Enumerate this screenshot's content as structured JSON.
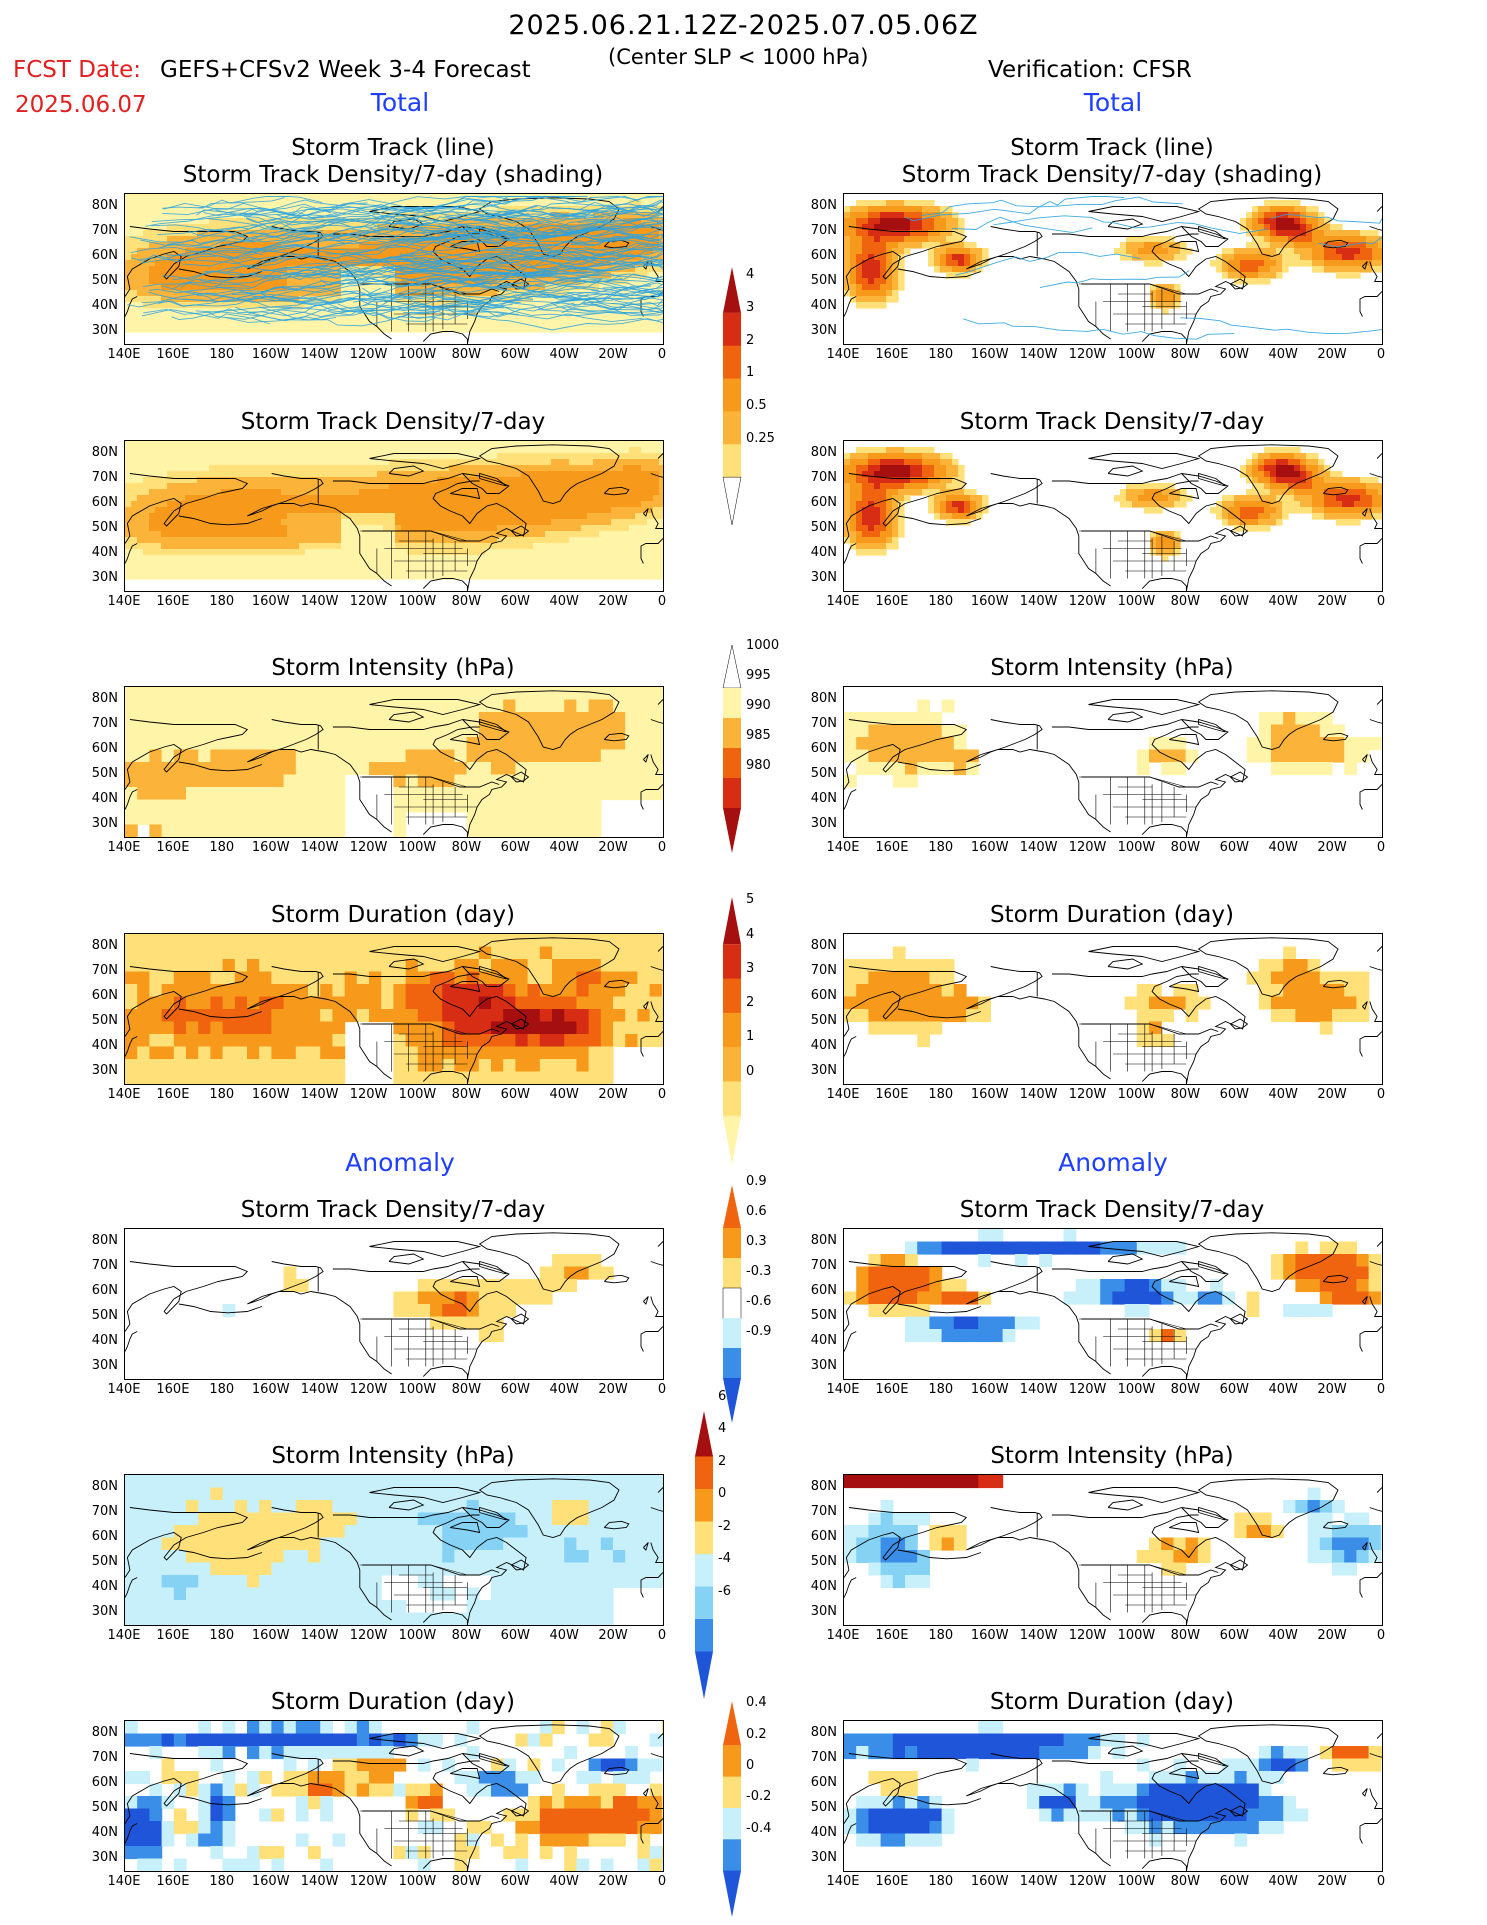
{
  "header": {
    "title": "2025.06.21.12Z-2025.07.05.06Z",
    "subtitle": "(Center SLP < 1000 hPa)",
    "fcst_label": "FCST Date:",
    "fcst_date": "2025.06.07",
    "model_label": "GEFS+CFSv2 Week 3-4 Forecast",
    "verification_label": "Verification: CFSR"
  },
  "sections": {
    "total": "Total",
    "anomaly": "Anomaly"
  },
  "panel_titles": {
    "track_line": "Storm Track (line)",
    "track_shading": "Storm Track Density/7-day (shading)",
    "density": "Storm Track Density/7-day",
    "intensity": "Storm Intensity (hPa)",
    "duration": "Storm Duration (day)"
  },
  "axes": {
    "lat_ticks": [
      "80N",
      "70N",
      "60N",
      "50N",
      "40N",
      "30N"
    ],
    "lon_ticks": [
      "140E",
      "160E",
      "180",
      "160W",
      "140W",
      "120W",
      "100W",
      "80W",
      "60W",
      "40W",
      "20W",
      "0"
    ]
  },
  "colorbars": {
    "density_total": [
      "4",
      "3",
      "2",
      "1",
      "0.5",
      "0.25"
    ],
    "intensity_total": [
      "1000",
      "995",
      "990",
      "985",
      "980"
    ],
    "duration_total": [
      "5",
      "4",
      "3",
      "2",
      "1",
      "0"
    ],
    "density_anom": [
      "0.9",
      "0.6",
      "0.3",
      "-0.3",
      "-0.6",
      "-0.9"
    ],
    "intensity_anom": [
      "6",
      "4",
      "2",
      "0",
      "-2",
      "-4",
      "-6"
    ],
    "duration_anom": [
      "0.4",
      "0.2",
      "0",
      "-0.2",
      "-0.4"
    ]
  },
  "colors": {
    "seq_light": "#fff4a8",
    "seq_1": "#ffe079",
    "seq_2": "#fbb33a",
    "seq_3": "#f79a1c",
    "seq_4": "#f06410",
    "seq_5": "#d62d14",
    "seq_6": "#a50f0f",
    "div_neg_1": "#c7f0fa",
    "div_neg_2": "#86d2f5",
    "div_neg_3": "#3a8ee8",
    "div_neg_4": "#1f55d8",
    "track_line": "#2aa3e0",
    "label_red": "#e02020",
    "label_blue": "#1f3fff"
  },
  "chart_data": [
    {
      "type": "heatmap",
      "panel": "forecast-total-storm-track-with-density",
      "columns": "GEFS+CFSv2 Week 3-4 Forecast",
      "title": "Storm Track (line) / Storm Track Density/7-day (shading)",
      "xlim": [
        "140E",
        "0"
      ],
      "ylim": [
        "25N",
        "85N"
      ]
    },
    {
      "type": "heatmap",
      "panel": "verification-total-storm-track-with-density",
      "columns": "Verification: CFSR",
      "title": "Storm Track (line) / Storm Track Density/7-day (shading)",
      "xlim": [
        "140E",
        "0"
      ],
      "ylim": [
        "25N",
        "85N"
      ]
    },
    {
      "type": "heatmap",
      "panel": "forecast-total-density",
      "title": "Storm Track Density/7-day",
      "levels": [
        0.25,
        0.5,
        1,
        2,
        3,
        4
      ]
    },
    {
      "type": "heatmap",
      "panel": "verification-total-density",
      "title": "Storm Track Density/7-day",
      "levels": [
        0.25,
        0.5,
        1,
        2,
        3,
        4
      ]
    },
    {
      "type": "heatmap",
      "panel": "forecast-total-intensity",
      "title": "Storm Intensity (hPa)",
      "levels": [
        980,
        985,
        990,
        995,
        1000
      ]
    },
    {
      "type": "heatmap",
      "panel": "verification-total-intensity",
      "title": "Storm Intensity (hPa)",
      "levels": [
        980,
        985,
        990,
        995,
        1000
      ]
    },
    {
      "type": "heatmap",
      "panel": "forecast-total-duration",
      "title": "Storm Duration (day)",
      "levels": [
        0,
        1,
        2,
        3,
        4,
        5
      ]
    },
    {
      "type": "heatmap",
      "panel": "verification-total-duration",
      "title": "Storm Duration (day)",
      "levels": [
        0,
        1,
        2,
        3,
        4,
        5
      ]
    },
    {
      "type": "heatmap",
      "panel": "forecast-anomaly-density",
      "title": "Storm Track Density/7-day",
      "levels": [
        -0.9,
        -0.6,
        -0.3,
        0.3,
        0.6,
        0.9
      ]
    },
    {
      "type": "heatmap",
      "panel": "verification-anomaly-density",
      "title": "Storm Track Density/7-day",
      "levels": [
        -0.9,
        -0.6,
        -0.3,
        0.3,
        0.6,
        0.9
      ]
    },
    {
      "type": "heatmap",
      "panel": "forecast-anomaly-intensity",
      "title": "Storm Intensity (hPa)",
      "levels": [
        -6,
        -4,
        -2,
        0,
        2,
        4,
        6
      ]
    },
    {
      "type": "heatmap",
      "panel": "verification-anomaly-intensity",
      "title": "Storm Intensity (hPa)",
      "levels": [
        -6,
        -4,
        -2,
        0,
        2,
        4,
        6
      ]
    },
    {
      "type": "heatmap",
      "panel": "forecast-anomaly-duration",
      "title": "Storm Duration (day)",
      "levels": [
        -0.4,
        -0.2,
        0,
        0.2,
        0.4
      ]
    },
    {
      "type": "heatmap",
      "panel": "verification-anomaly-duration",
      "title": "Storm Duration (day)",
      "levels": [
        -0.4,
        -0.2,
        0,
        0.2,
        0.4
      ]
    }
  ]
}
